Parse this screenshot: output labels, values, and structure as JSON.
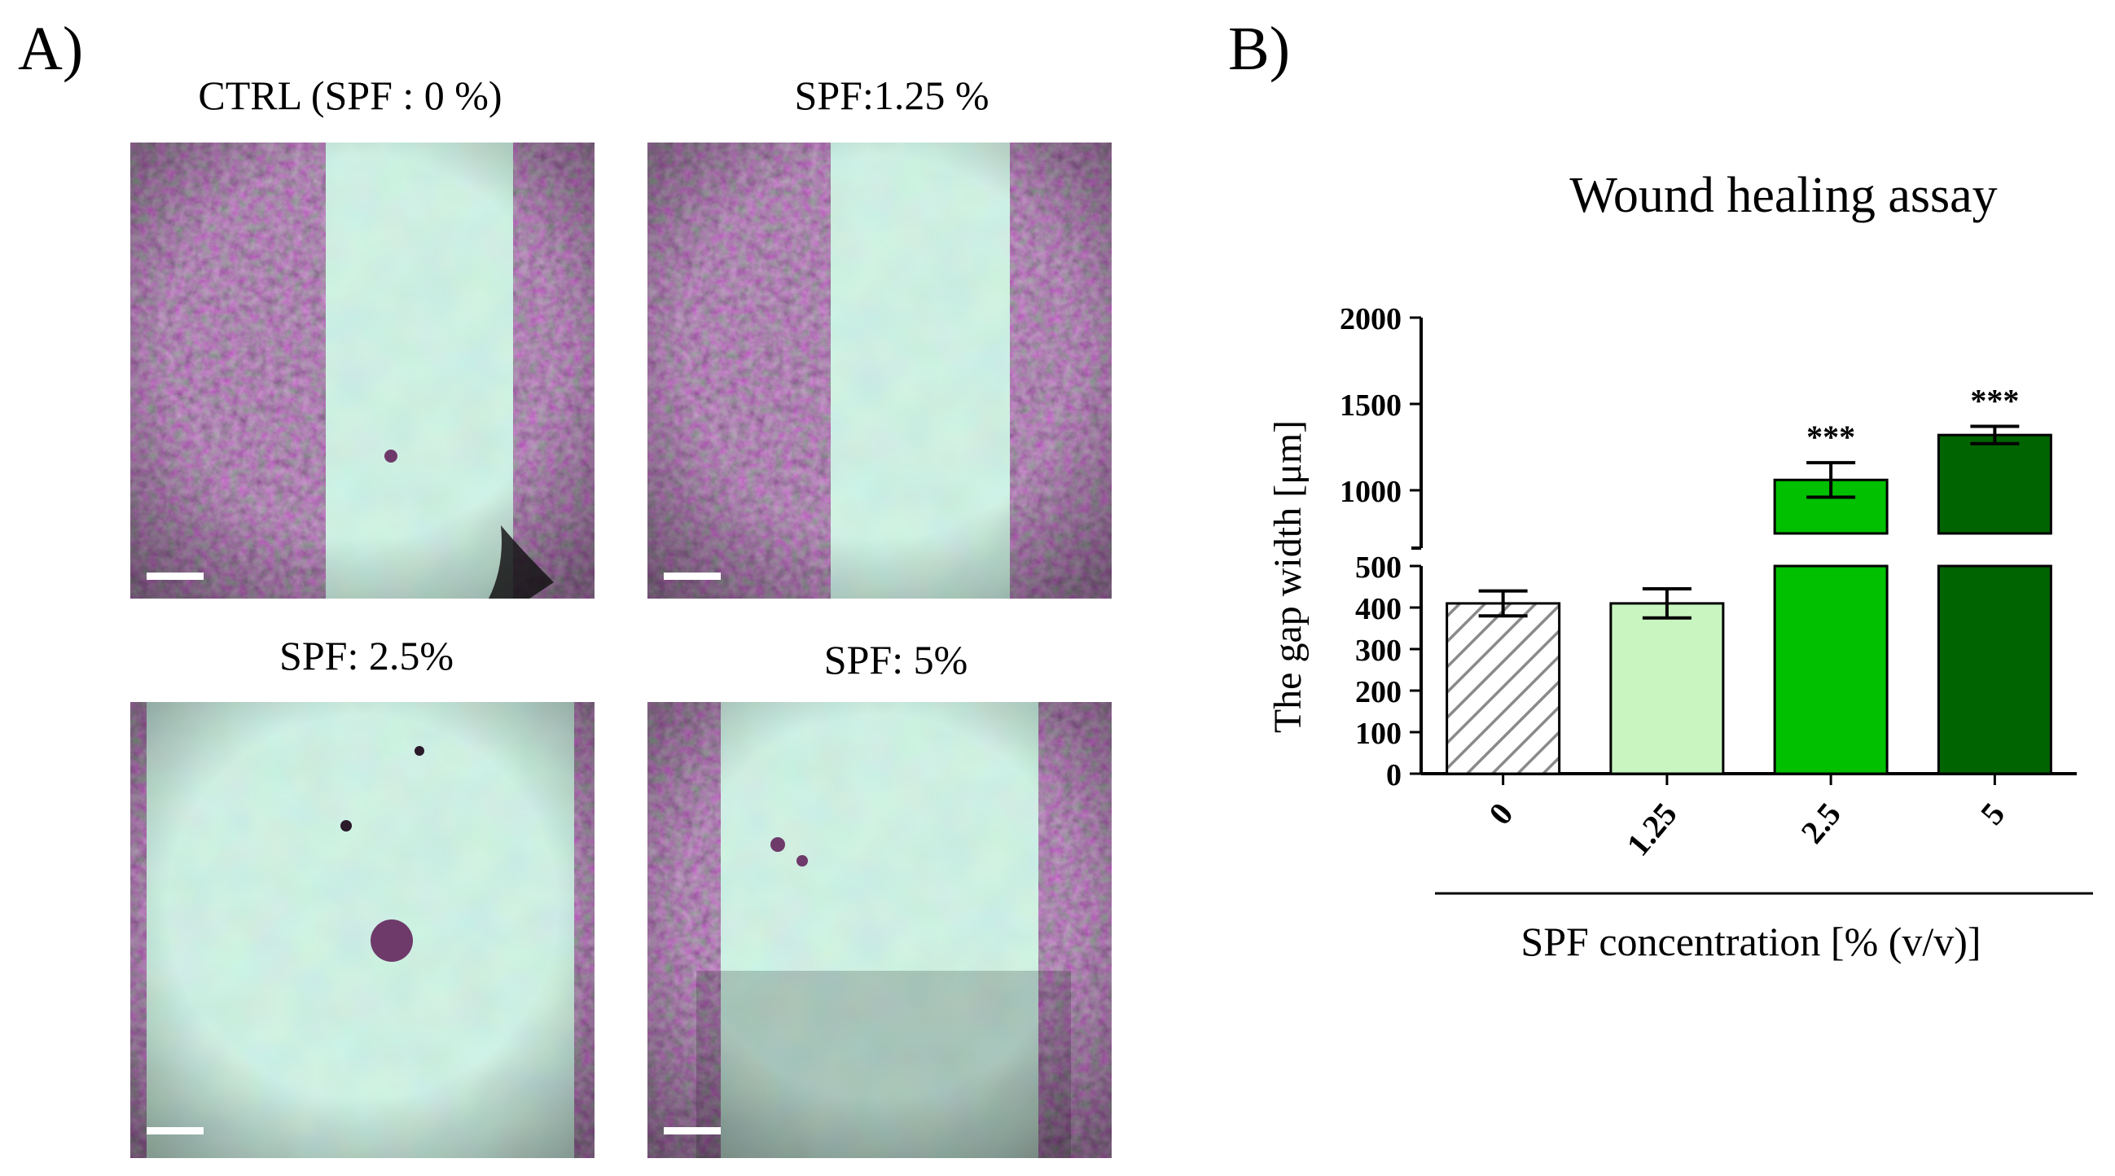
{
  "panelA": {
    "letter": "A)",
    "images": [
      {
        "caption": "CTRL (SPF : 0 %)"
      },
      {
        "caption": "SPF:1.25 %"
      },
      {
        "caption": "SPF: 2.5%"
      },
      {
        "caption": "SPF: 5%"
      }
    ],
    "colors": {
      "cells": "#6e3a6a",
      "gap": "#9ad8bd",
      "scale_bar": "#ffffff"
    }
  },
  "panelB": {
    "letter": "B)",
    "colors": {
      "0": "hatched-gray",
      "1.25": "#c8f5c0",
      "2.5": "#00c000",
      "5": "#006400"
    }
  },
  "chart_data": {
    "type": "bar",
    "title": "Wound healing assay",
    "xlabel": "SPF concentration [% (v/v)]",
    "ylabel": "The gap width [μm]",
    "categories": [
      "0",
      "1.25",
      "2.5",
      "5"
    ],
    "values": [
      410,
      410,
      1060,
      1320
    ],
    "errors": [
      30,
      35,
      100,
      50
    ],
    "significance": [
      "",
      "",
      "***",
      "***"
    ],
    "y_axis_break": true,
    "ylim_lower": [
      0,
      500
    ],
    "ylim_upper": [
      750,
      2000
    ],
    "yticks_lower": [
      0,
      100,
      200,
      300,
      400,
      500
    ],
    "yticks_upper": [
      1000,
      1500,
      2000
    ],
    "legend": "none",
    "grid": false
  }
}
